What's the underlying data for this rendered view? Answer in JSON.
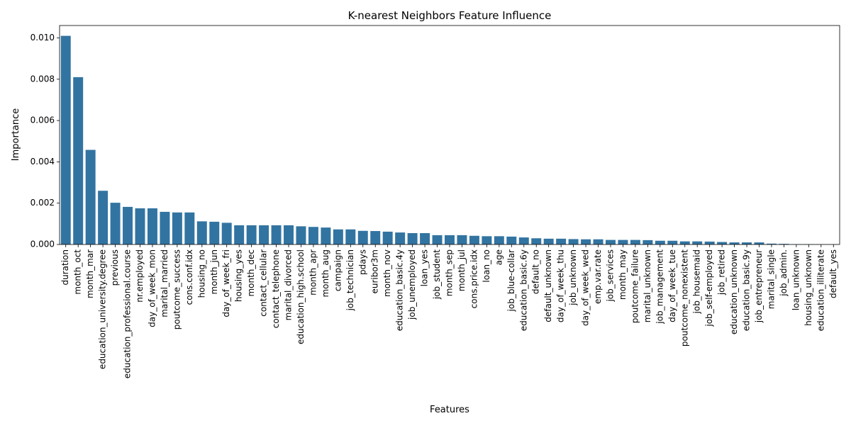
{
  "chart_data": {
    "type": "bar",
    "title": "K-nearest Neighbors Feature Influence",
    "xlabel": "Features",
    "ylabel": "Importance",
    "ylim": [
      0,
      0.0106
    ],
    "yticks": [
      "0.000",
      "0.002",
      "0.004",
      "0.006",
      "0.008",
      "0.010"
    ],
    "grid": false,
    "legend": "none",
    "bar_color": "#3274a1",
    "categories": [
      "duration",
      "month_oct",
      "month_mar",
      "education_university.degree",
      "previous",
      "education_professional.course",
      "nr.employed",
      "day_of_week_mon",
      "marital_married",
      "poutcome_success",
      "cons.conf.idx",
      "housing_no",
      "month_jun",
      "day_of_week_fri",
      "housing_yes",
      "month_dec",
      "contact_cellular",
      "contact_telephone",
      "marital_divorced",
      "education_high.school",
      "month_apr",
      "month_aug",
      "campaign",
      "job_technician",
      "pdays",
      "euribor3m",
      "month_nov",
      "education_basic.4y",
      "job_unemployed",
      "loan_yes",
      "job_student",
      "month_sep",
      "month_jul",
      "cons.price.idx",
      "loan_no",
      "age",
      "job_blue-collar",
      "education_basic.6y",
      "default_no",
      "default_unknown",
      "day_of_week_thu",
      "job_unknown",
      "day_of_week_wed",
      "emp.var.rate",
      "job_services",
      "month_may",
      "poutcome_failure",
      "marital_unknown",
      "job_management",
      "day_of_week_tue",
      "poutcome_nonexistent",
      "job_housemaid",
      "job_self-employed",
      "job_retired",
      "education_unknown",
      "education_basic.9y",
      "job_entrepreneur",
      "marital_single",
      "job_admin.",
      "loan_unknown",
      "housing_unknown",
      "education_illiterate",
      "default_yes"
    ],
    "values": [
      0.0101,
      0.0081,
      0.00458,
      0.0026,
      0.00202,
      0.00182,
      0.00175,
      0.00175,
      0.00158,
      0.00155,
      0.00155,
      0.00112,
      0.0011,
      0.00105,
      0.00093,
      0.00093,
      0.00093,
      0.00093,
      0.00093,
      0.00088,
      0.00085,
      0.00082,
      0.00073,
      0.00073,
      0.00066,
      0.00065,
      0.00062,
      0.00058,
      0.00055,
      0.00055,
      0.00045,
      0.00045,
      0.00045,
      0.00042,
      0.0004,
      0.0004,
      0.00038,
      0.00034,
      0.0003,
      0.00028,
      0.00028,
      0.00026,
      0.00025,
      0.00025,
      0.00022,
      0.00022,
      0.00022,
      0.00021,
      0.00018,
      0.00018,
      0.00015,
      0.00015,
      0.00014,
      0.00012,
      0.0001,
      0.0001,
      0.0001,
      4e-05,
      3e-05,
      1e-05,
      1e-05,
      5e-06,
      5e-06
    ]
  }
}
